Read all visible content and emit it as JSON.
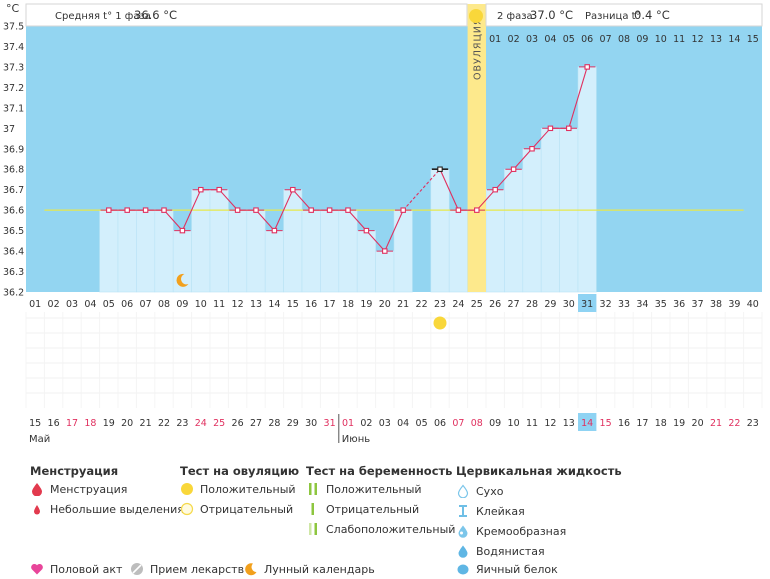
{
  "header": {
    "unit": "°C",
    "phase1_label": "Средняя t° 1 фаза",
    "phase1_value": "36.6 °C",
    "phase2_label": "2 фаза",
    "phase2_value": "37.0 °C",
    "diff_label": "Разница t°",
    "diff_value": "0.4 °C"
  },
  "ovulation_label": "ОВУЛЯЦИЯ",
  "colors": {
    "plot_bg": "#93d5f1",
    "bar": "#d3effc",
    "line": "#e0305f",
    "coverline": "#e8e84a",
    "ovulation": "#fde98c",
    "sun": "#f9d73a",
    "highlight": "#8fd3f3",
    "red_text": "#e0305f"
  },
  "chart_data": {
    "type": "line",
    "title": "",
    "ylabel": "°C",
    "ylim": [
      36.2,
      37.5
    ],
    "yticks": [
      "36.2",
      "36.3",
      "36.4",
      "36.5",
      "36.6",
      "36.7",
      "36.8",
      "36.9",
      "37",
      "37.1",
      "37.2",
      "37.3",
      "37.4",
      "37.5"
    ],
    "coverline": 36.6,
    "cycle_days": [
      "01",
      "02",
      "03",
      "04",
      "05",
      "06",
      "07",
      "08",
      "09",
      "10",
      "11",
      "12",
      "13",
      "14",
      "15",
      "16",
      "17",
      "18",
      "19",
      "20",
      "21",
      "22",
      "23",
      "24",
      "25",
      "26",
      "27",
      "28",
      "29",
      "30",
      "31",
      "32",
      "33",
      "34",
      "35",
      "36",
      "37",
      "38",
      "39",
      "40"
    ],
    "dates": [
      "15",
      "16",
      "17",
      "18",
      "19",
      "20",
      "21",
      "22",
      "23",
      "24",
      "25",
      "26",
      "27",
      "28",
      "29",
      "30",
      "31",
      "01",
      "02",
      "03",
      "04",
      "05",
      "06",
      "07",
      "08",
      "09",
      "10",
      "11",
      "12",
      "13",
      "14",
      "15",
      "16",
      "17",
      "18",
      "19",
      "20",
      "21",
      "22",
      "23"
    ],
    "weekend_date_indices": [
      2,
      3,
      9,
      10,
      16,
      17,
      23,
      24,
      30,
      31,
      37,
      38
    ],
    "month_labels": [
      {
        "label": "Май",
        "start": 0
      },
      {
        "label": "Июнь",
        "start": 17
      }
    ],
    "temperatures": [
      null,
      null,
      null,
      null,
      36.6,
      36.6,
      36.6,
      36.6,
      36.5,
      36.7,
      36.7,
      36.6,
      36.6,
      36.5,
      36.7,
      36.6,
      36.6,
      36.6,
      36.5,
      36.4,
      36.6,
      null,
      36.8,
      36.6,
      36.6,
      36.7,
      36.8,
      36.9,
      37.0,
      37.0,
      37.3,
      null,
      null,
      null,
      null,
      null,
      null,
      null,
      null,
      null
    ],
    "gap_bridges": [
      [
        21,
        23
      ]
    ],
    "ovulation_day": 25,
    "phase2_header_days": [
      "01",
      "02",
      "03",
      "04",
      "05",
      "06",
      "07",
      "08",
      "09",
      "10",
      "11",
      "12",
      "13",
      "14",
      "15"
    ],
    "phase2_header_start": 26,
    "current_day": 31,
    "positive_ovulation_test_day": 23,
    "moon_day": 9,
    "black_marker_day": 23
  },
  "legend": {
    "menstruation": {
      "title": "Менструация",
      "items": [
        "Менструация",
        "Небольшие выделения"
      ]
    },
    "ovulation_test": {
      "title": "Тест на овуляцию",
      "items": [
        "Положительный",
        "Отрицательный"
      ]
    },
    "pregnancy_test": {
      "title": "Тест на беременность",
      "items": [
        "Положительный",
        "Отрицательный",
        "Слабоположительный"
      ]
    },
    "cervical": {
      "title": "Цервикальная жидкость",
      "items": [
        "Сухо",
        "Клейкая",
        "Кремообразная",
        "Водянистая",
        "Яичный белок"
      ]
    },
    "bottom": [
      "Половой акт",
      "Прием лекарств",
      "Лунный календарь"
    ]
  }
}
